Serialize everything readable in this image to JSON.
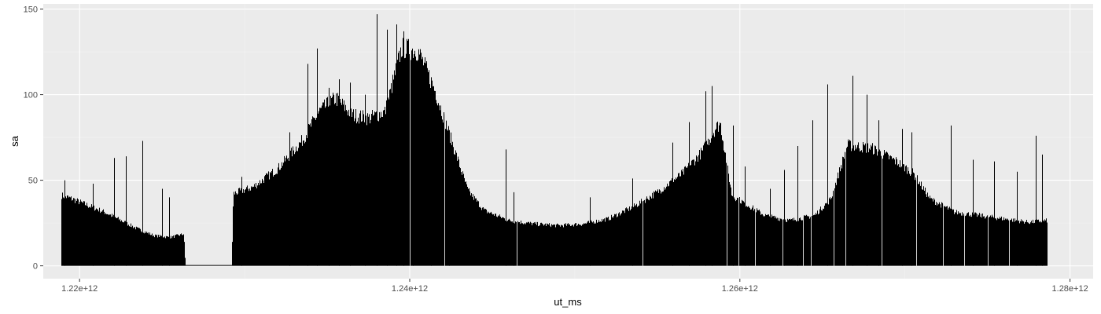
{
  "colors": {
    "panel_background": "#ebebeb",
    "grid_major": "#ffffff",
    "grid_minor": "#f4f4f4",
    "bars": "#000000",
    "tick_text": "#4d4d4d",
    "tick_marks": "#333333"
  },
  "chart_data": {
    "type": "bar",
    "xlabel": "ut_ms",
    "ylabel": "sa",
    "xlim": [
      1217800000000,
      1281400000000
    ],
    "ylim": [
      -7.5,
      153
    ],
    "x_ticks": [
      {
        "value": 1220000000000,
        "label": "1.22e+12"
      },
      {
        "value": 1240000000000,
        "label": "1.24e+12"
      },
      {
        "value": 1260000000000,
        "label": "1.26e+12"
      },
      {
        "value": 1280000000000,
        "label": "1.28e+12"
      }
    ],
    "y_ticks": [
      {
        "value": 0,
        "label": "0"
      },
      {
        "value": 50,
        "label": "50"
      },
      {
        "value": 100,
        "label": "100"
      },
      {
        "value": 150,
        "label": "150"
      }
    ],
    "grid": true,
    "x_range_of_data": [
      1218900000000,
      1278600000000
    ],
    "envelope": {
      "x": [
        1218900000000,
        1219500000000,
        1220500000000,
        1221500000000,
        1222500000000,
        1223500000000,
        1224500000000,
        1225500000000,
        1226300000000,
        1226400000000,
        1229200000000,
        1229300000000,
        1230500000000,
        1232000000000,
        1233500000000,
        1234500000000,
        1235500000000,
        1236500000000,
        1237500000000,
        1238500000000,
        1239500000000,
        1240500000000,
        1241500000000,
        1242500000000,
        1243500000000,
        1244500000000,
        1246000000000,
        1247500000000,
        1249000000000,
        1250500000000,
        1252000000000,
        1253500000000,
        1255000000000,
        1256500000000,
        1257700000000,
        1258500000000,
        1258800000000,
        1259500000000,
        1260500000000,
        1261500000000,
        1263000000000,
        1264500000000,
        1265500000000,
        1266500000000,
        1268000000000,
        1269500000000,
        1270500000000,
        1271500000000,
        1273000000000,
        1274500000000,
        1276000000000,
        1277500000000,
        1278600000000
      ],
      "y": [
        42,
        40,
        36,
        32,
        27,
        22,
        18,
        17,
        19,
        0,
        0,
        43,
        47,
        58,
        75,
        92,
        100,
        90,
        88,
        92,
        130,
        128,
        105,
        75,
        45,
        33,
        27,
        25,
        24,
        25,
        28,
        35,
        44,
        55,
        68,
        82,
        85,
        42,
        36,
        30,
        27,
        30,
        40,
        72,
        70,
        62,
        55,
        40,
        32,
        30,
        28,
        26,
        27
      ]
    },
    "spikes": [
      {
        "x": 1219100000000,
        "y": 50
      },
      {
        "x": 1220800000000,
        "y": 48
      },
      {
        "x": 1222100000000,
        "y": 63
      },
      {
        "x": 1222800000000,
        "y": 64
      },
      {
        "x": 1223800000000,
        "y": 73
      },
      {
        "x": 1225000000000,
        "y": 45
      },
      {
        "x": 1225400000000,
        "y": 40
      },
      {
        "x": 1229800000000,
        "y": 52
      },
      {
        "x": 1232700000000,
        "y": 78
      },
      {
        "x": 1233800000000,
        "y": 118
      },
      {
        "x": 1234400000000,
        "y": 127
      },
      {
        "x": 1235100000000,
        "y": 104
      },
      {
        "x": 1235700000000,
        "y": 109
      },
      {
        "x": 1236400000000,
        "y": 107
      },
      {
        "x": 1237300000000,
        "y": 100
      },
      {
        "x": 1238000000000,
        "y": 147
      },
      {
        "x": 1238600000000,
        "y": 138
      },
      {
        "x": 1239200000000,
        "y": 141
      },
      {
        "x": 1239600000000,
        "y": 137
      },
      {
        "x": 1240200000000,
        "y": 113
      },
      {
        "x": 1241300000000,
        "y": 100
      },
      {
        "x": 1242400000000,
        "y": 75
      },
      {
        "x": 1245800000000,
        "y": 68
      },
      {
        "x": 1246300000000,
        "y": 43
      },
      {
        "x": 1250900000000,
        "y": 40
      },
      {
        "x": 1253500000000,
        "y": 51
      },
      {
        "x": 1255900000000,
        "y": 72
      },
      {
        "x": 1256900000000,
        "y": 84
      },
      {
        "x": 1257900000000,
        "y": 102
      },
      {
        "x": 1258300000000,
        "y": 105
      },
      {
        "x": 1259600000000,
        "y": 82
      },
      {
        "x": 1260300000000,
        "y": 58
      },
      {
        "x": 1261800000000,
        "y": 45
      },
      {
        "x": 1262700000000,
        "y": 56
      },
      {
        "x": 1263500000000,
        "y": 70
      },
      {
        "x": 1264400000000,
        "y": 85
      },
      {
        "x": 1265300000000,
        "y": 106
      },
      {
        "x": 1266800000000,
        "y": 111
      },
      {
        "x": 1267700000000,
        "y": 100
      },
      {
        "x": 1268400000000,
        "y": 85
      },
      {
        "x": 1269800000000,
        "y": 80
      },
      {
        "x": 1270400000000,
        "y": 78
      },
      {
        "x": 1272800000000,
        "y": 82
      },
      {
        "x": 1274100000000,
        "y": 62
      },
      {
        "x": 1275400000000,
        "y": 61
      },
      {
        "x": 1276800000000,
        "y": 55
      },
      {
        "x": 1277900000000,
        "y": 76
      },
      {
        "x": 1278300000000,
        "y": 65
      }
    ]
  }
}
